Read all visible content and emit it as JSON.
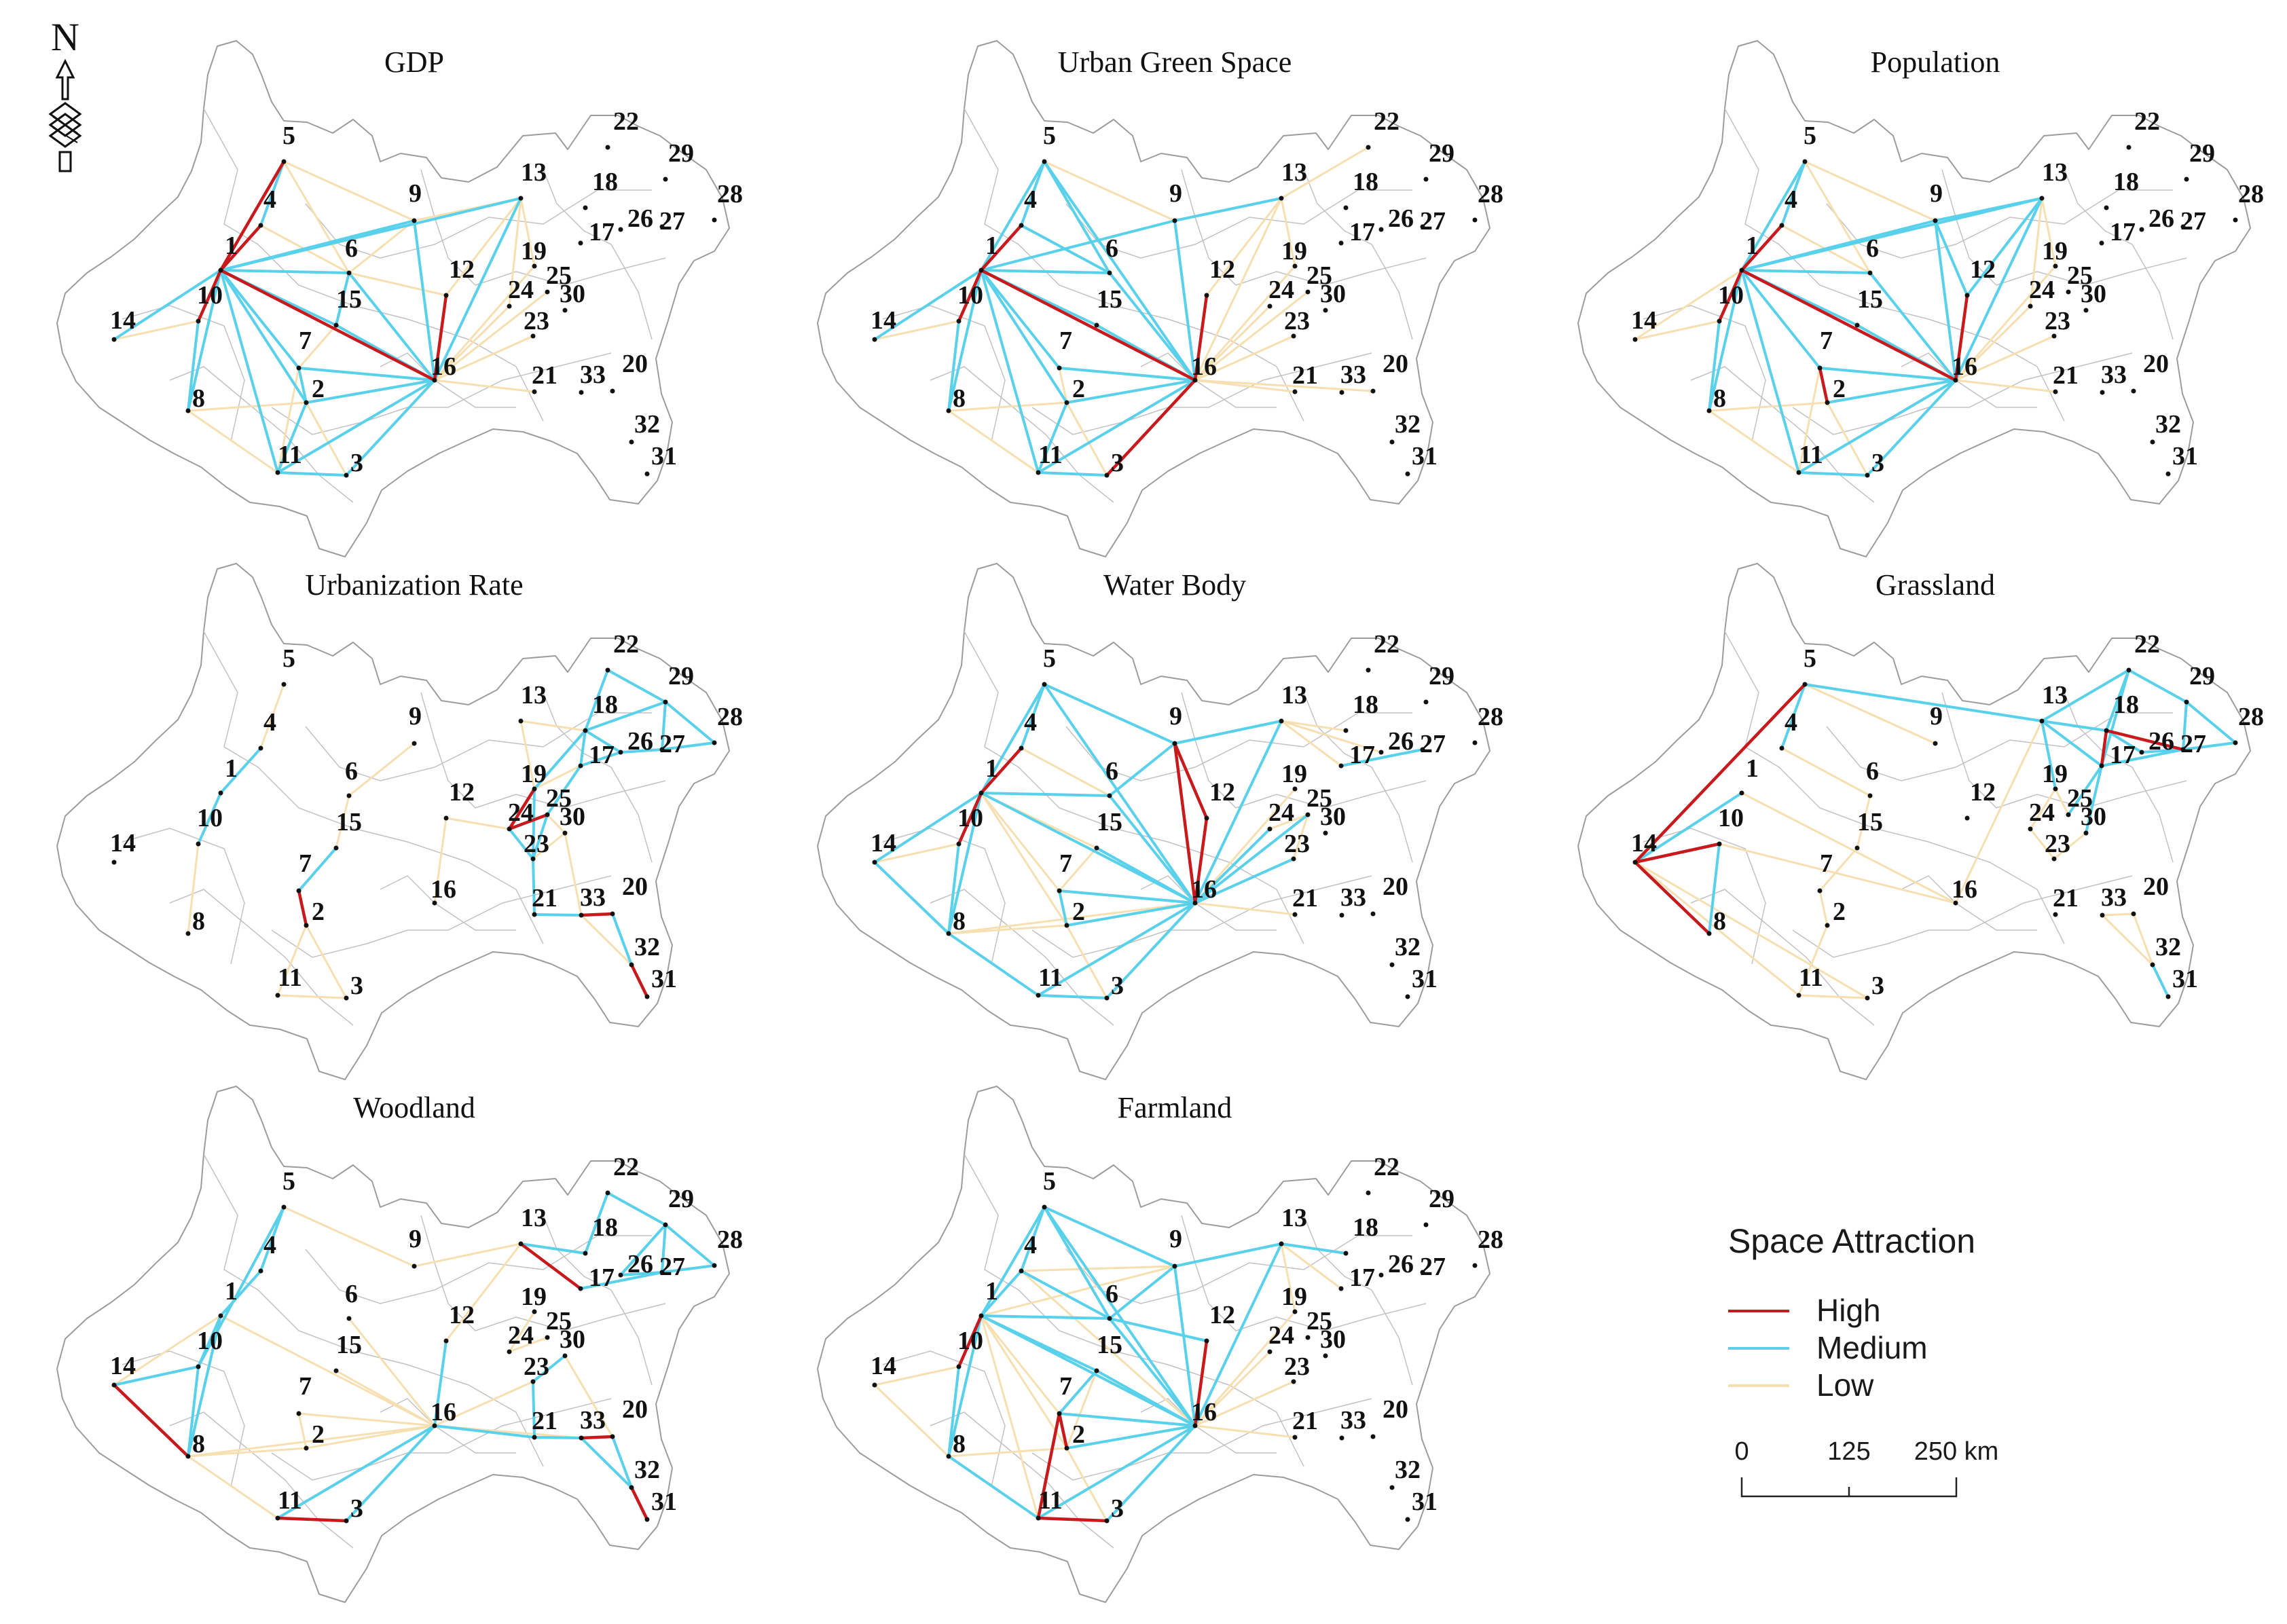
{
  "colors": {
    "high": "#c8191c",
    "medium": "#5ad1ea",
    "low": "#f6dfb0"
  },
  "north_arrow": {
    "label": "N"
  },
  "nodes": [
    "1",
    "2",
    "3",
    "4",
    "5",
    "6",
    "7",
    "8",
    "9",
    "10",
    "11",
    "12",
    "13",
    "14",
    "15",
    "16",
    "17",
    "18",
    "19",
    "20",
    "21",
    "22",
    "23",
    "24",
    "25",
    "26",
    "27",
    "28",
    "29",
    "30",
    "31",
    "32",
    "33"
  ],
  "maps": [
    {
      "title": "GDP",
      "high": [
        [
          1,
          5
        ],
        [
          1,
          4
        ],
        [
          1,
          16
        ],
        [
          1,
          10
        ],
        [
          12,
          16
        ]
      ],
      "medium": [
        [
          1,
          14
        ],
        [
          1,
          6
        ],
        [
          1,
          15
        ],
        [
          1,
          7
        ],
        [
          1,
          8
        ],
        [
          1,
          11
        ],
        [
          1,
          2
        ],
        [
          1,
          9
        ],
        [
          10,
          8
        ],
        [
          16,
          6
        ],
        [
          16,
          15
        ],
        [
          16,
          9
        ],
        [
          16,
          7
        ],
        [
          16,
          2
        ],
        [
          16,
          11
        ],
        [
          16,
          3
        ],
        [
          16,
          13
        ],
        [
          11,
          3
        ],
        [
          11,
          2
        ],
        [
          7,
          2
        ],
        [
          5,
          4
        ],
        [
          6,
          15
        ],
        [
          1,
          13
        ]
      ],
      "low": [
        [
          5,
          9
        ],
        [
          5,
          6
        ],
        [
          9,
          13
        ],
        [
          9,
          6
        ],
        [
          4,
          6
        ],
        [
          16,
          19
        ],
        [
          16,
          24
        ],
        [
          16,
          21
        ],
        [
          16,
          25
        ],
        [
          16,
          23
        ],
        [
          13,
          19
        ],
        [
          13,
          24
        ],
        [
          10,
          14
        ],
        [
          2,
          3
        ],
        [
          7,
          11
        ],
        [
          15,
          7
        ],
        [
          8,
          11
        ],
        [
          8,
          2
        ],
        [
          12,
          13
        ],
        [
          12,
          6
        ]
      ]
    },
    {
      "title": "Urban Green Space",
      "high": [
        [
          1,
          10
        ],
        [
          1,
          16
        ],
        [
          16,
          3
        ],
        [
          16,
          12
        ],
        [
          1,
          4
        ]
      ],
      "medium": [
        [
          1,
          5
        ],
        [
          1,
          9
        ],
        [
          1,
          6
        ],
        [
          1,
          15
        ],
        [
          1,
          7
        ],
        [
          1,
          2
        ],
        [
          1,
          11
        ],
        [
          1,
          8
        ],
        [
          10,
          8
        ],
        [
          5,
          4
        ],
        [
          5,
          6
        ],
        [
          5,
          16
        ],
        [
          9,
          16
        ],
        [
          6,
          16
        ],
        [
          15,
          16
        ],
        [
          7,
          16
        ],
        [
          2,
          16
        ],
        [
          11,
          16
        ],
        [
          11,
          3
        ],
        [
          11,
          2
        ],
        [
          9,
          13
        ],
        [
          1,
          14
        ],
        [
          4,
          6
        ]
      ],
      "low": [
        [
          16,
          13
        ],
        [
          16,
          19
        ],
        [
          16,
          24
        ],
        [
          16,
          21
        ],
        [
          16,
          25
        ],
        [
          16,
          23
        ],
        [
          16,
          20
        ],
        [
          13,
          22
        ],
        [
          13,
          19
        ],
        [
          10,
          14
        ],
        [
          8,
          11
        ],
        [
          8,
          2
        ],
        [
          7,
          2
        ],
        [
          2,
          3
        ],
        [
          12,
          13
        ],
        [
          5,
          9
        ]
      ]
    },
    {
      "title": "Population",
      "high": [
        [
          1,
          4
        ],
        [
          1,
          16
        ],
        [
          1,
          10
        ],
        [
          7,
          2
        ],
        [
          16,
          12
        ]
      ],
      "medium": [
        [
          1,
          5
        ],
        [
          1,
          9
        ],
        [
          1,
          6
        ],
        [
          1,
          15
        ],
        [
          1,
          7
        ],
        [
          1,
          8
        ],
        [
          1,
          11
        ],
        [
          1,
          13
        ],
        [
          9,
          13
        ],
        [
          9,
          16
        ],
        [
          6,
          16
        ],
        [
          15,
          16
        ],
        [
          7,
          16
        ],
        [
          2,
          16
        ],
        [
          11,
          16
        ],
        [
          3,
          16
        ],
        [
          13,
          16
        ],
        [
          10,
          8
        ],
        [
          5,
          4
        ],
        [
          11,
          3
        ],
        [
          12,
          13
        ],
        [
          9,
          12
        ]
      ],
      "low": [
        [
          5,
          6
        ],
        [
          5,
          9
        ],
        [
          10,
          14
        ],
        [
          16,
          21
        ],
        [
          16,
          24
        ],
        [
          16,
          19
        ],
        [
          16,
          23
        ],
        [
          13,
          19
        ],
        [
          13,
          24
        ],
        [
          8,
          11
        ],
        [
          8,
          2
        ],
        [
          2,
          3
        ],
        [
          7,
          11
        ],
        [
          4,
          6
        ],
        [
          1,
          14
        ]
      ]
    },
    {
      "title": "Urbanization Rate",
      "high": [
        [
          7,
          2
        ],
        [
          19,
          24
        ],
        [
          24,
          25
        ],
        [
          33,
          20
        ],
        [
          31,
          32
        ]
      ],
      "medium": [
        [
          1,
          10
        ],
        [
          1,
          4
        ],
        [
          7,
          15
        ],
        [
          22,
          18
        ],
        [
          22,
          29
        ],
        [
          18,
          29
        ],
        [
          18,
          26
        ],
        [
          26,
          27
        ],
        [
          29,
          27
        ],
        [
          29,
          28
        ],
        [
          27,
          28
        ],
        [
          18,
          17
        ],
        [
          17,
          25
        ],
        [
          25,
          23
        ],
        [
          19,
          23
        ],
        [
          23,
          21
        ],
        [
          21,
          33
        ],
        [
          32,
          20
        ],
        [
          24,
          23
        ],
        [
          26,
          17
        ],
        [
          19,
          18
        ]
      ],
      "low": [
        [
          5,
          4
        ],
        [
          10,
          8
        ],
        [
          6,
          15
        ],
        [
          9,
          6
        ],
        [
          11,
          3
        ],
        [
          2,
          11
        ],
        [
          2,
          3
        ],
        [
          12,
          24
        ],
        [
          12,
          16
        ],
        [
          13,
          18
        ],
        [
          13,
          19
        ],
        [
          25,
          30
        ],
        [
          23,
          30
        ],
        [
          30,
          33
        ],
        [
          17,
          19
        ],
        [
          33,
          32
        ]
      ]
    },
    {
      "title": "Water Body",
      "high": [
        [
          1,
          4
        ],
        [
          1,
          10
        ],
        [
          9,
          16
        ],
        [
          9,
          12
        ],
        [
          12,
          16
        ]
      ],
      "medium": [
        [
          1,
          5
        ],
        [
          1,
          6
        ],
        [
          1,
          8
        ],
        [
          1,
          16
        ],
        [
          10,
          8
        ],
        [
          14,
          8
        ],
        [
          8,
          11
        ],
        [
          11,
          3
        ],
        [
          3,
          16
        ],
        [
          11,
          16
        ],
        [
          2,
          16
        ],
        [
          7,
          16
        ],
        [
          15,
          16
        ],
        [
          6,
          16
        ],
        [
          5,
          16
        ],
        [
          5,
          9
        ],
        [
          9,
          13
        ],
        [
          13,
          16
        ],
        [
          16,
          23
        ],
        [
          16,
          25
        ],
        [
          16,
          24
        ],
        [
          17,
          27
        ],
        [
          5,
          4
        ],
        [
          7,
          2
        ],
        [
          6,
          9
        ],
        [
          1,
          14
        ]
      ],
      "low": [
        [
          1,
          15
        ],
        [
          1,
          7
        ],
        [
          1,
          2
        ],
        [
          10,
          14
        ],
        [
          13,
          18
        ],
        [
          13,
          26
        ],
        [
          13,
          17
        ],
        [
          16,
          19
        ],
        [
          16,
          21
        ],
        [
          8,
          2
        ],
        [
          2,
          3
        ],
        [
          15,
          7
        ],
        [
          4,
          6
        ],
        [
          24,
          25
        ],
        [
          25,
          23
        ],
        [
          8,
          16
        ]
      ]
    },
    {
      "title": "Grassland",
      "high": [
        [
          14,
          5
        ],
        [
          14,
          10
        ],
        [
          14,
          8
        ],
        [
          18,
          27
        ],
        [
          18,
          17
        ]
      ],
      "medium": [
        [
          5,
          13
        ],
        [
          5,
          4
        ],
        [
          14,
          1
        ],
        [
          10,
          8
        ],
        [
          13,
          22
        ],
        [
          13,
          18
        ],
        [
          22,
          29
        ],
        [
          22,
          18
        ],
        [
          29,
          27
        ],
        [
          29,
          28
        ],
        [
          27,
          28
        ],
        [
          26,
          27
        ],
        [
          18,
          26
        ],
        [
          17,
          27
        ],
        [
          17,
          13
        ],
        [
          17,
          25
        ],
        [
          17,
          30
        ],
        [
          22,
          17
        ],
        [
          31,
          32
        ],
        [
          13,
          19
        ]
      ],
      "low": [
        [
          5,
          9
        ],
        [
          14,
          11
        ],
        [
          14,
          3
        ],
        [
          1,
          16
        ],
        [
          10,
          16
        ],
        [
          4,
          6
        ],
        [
          6,
          15
        ],
        [
          15,
          7
        ],
        [
          7,
          2
        ],
        [
          2,
          11
        ],
        [
          11,
          3
        ],
        [
          13,
          16
        ],
        [
          19,
          24
        ],
        [
          24,
          23
        ],
        [
          23,
          30
        ],
        [
          19,
          25
        ],
        [
          33,
          20
        ],
        [
          33,
          32
        ],
        [
          20,
          32
        ]
      ]
    },
    {
      "title": "Woodland",
      "high": [
        [
          14,
          8
        ],
        [
          11,
          3
        ],
        [
          13,
          17
        ],
        [
          33,
          20
        ],
        [
          32,
          31
        ]
      ],
      "medium": [
        [
          5,
          4
        ],
        [
          5,
          10
        ],
        [
          1,
          10
        ],
        [
          10,
          14
        ],
        [
          10,
          8
        ],
        [
          4,
          1
        ],
        [
          16,
          12
        ],
        [
          16,
          11
        ],
        [
          16,
          3
        ],
        [
          16,
          21
        ],
        [
          21,
          33
        ],
        [
          21,
          23
        ],
        [
          33,
          32
        ],
        [
          20,
          32
        ],
        [
          13,
          18
        ],
        [
          22,
          18
        ],
        [
          22,
          29
        ],
        [
          29,
          26
        ],
        [
          29,
          27
        ],
        [
          29,
          28
        ],
        [
          27,
          28
        ],
        [
          26,
          27
        ],
        [
          17,
          27
        ],
        [
          23,
          30
        ],
        [
          8,
          1
        ]
      ],
      "low": [
        [
          5,
          9
        ],
        [
          9,
          13
        ],
        [
          14,
          1
        ],
        [
          8,
          11
        ],
        [
          8,
          16
        ],
        [
          1,
          16
        ],
        [
          6,
          16
        ],
        [
          15,
          16
        ],
        [
          7,
          16
        ],
        [
          2,
          16
        ],
        [
          12,
          13
        ],
        [
          19,
          24
        ],
        [
          24,
          25
        ],
        [
          16,
          23
        ],
        [
          16,
          33
        ],
        [
          8,
          2
        ],
        [
          7,
          2
        ],
        [
          30,
          20
        ]
      ]
    },
    {
      "title": "Farmland",
      "high": [
        [
          1,
          10
        ],
        [
          7,
          2
        ],
        [
          7,
          11
        ],
        [
          12,
          16
        ],
        [
          11,
          3
        ]
      ],
      "medium": [
        [
          1,
          5
        ],
        [
          5,
          4
        ],
        [
          5,
          9
        ],
        [
          5,
          6
        ],
        [
          5,
          16
        ],
        [
          9,
          16
        ],
        [
          9,
          13
        ],
        [
          13,
          18
        ],
        [
          13,
          16
        ],
        [
          6,
          16
        ],
        [
          15,
          16
        ],
        [
          7,
          16
        ],
        [
          2,
          16
        ],
        [
          11,
          16
        ],
        [
          3,
          16
        ],
        [
          1,
          16
        ],
        [
          1,
          6
        ],
        [
          1,
          15
        ],
        [
          1,
          8
        ],
        [
          10,
          8
        ],
        [
          8,
          11
        ],
        [
          4,
          6
        ],
        [
          6,
          9
        ],
        [
          6,
          12
        ],
        [
          7,
          15
        ],
        [
          1,
          4
        ]
      ],
      "low": [
        [
          1,
          9
        ],
        [
          1,
          7
        ],
        [
          1,
          2
        ],
        [
          1,
          11
        ],
        [
          4,
          9
        ],
        [
          4,
          16
        ],
        [
          10,
          14
        ],
        [
          16,
          19
        ],
        [
          16,
          24
        ],
        [
          16,
          21
        ],
        [
          16,
          23
        ],
        [
          13,
          19
        ],
        [
          13,
          17
        ],
        [
          8,
          2
        ],
        [
          2,
          3
        ],
        [
          14,
          8
        ],
        [
          15,
          2
        ]
      ]
    }
  ],
  "legend": {
    "title": "Space Attraction",
    "items": [
      "High",
      "Medium",
      "Low"
    ],
    "scale_labels": [
      "0",
      "125",
      "250 km"
    ]
  }
}
